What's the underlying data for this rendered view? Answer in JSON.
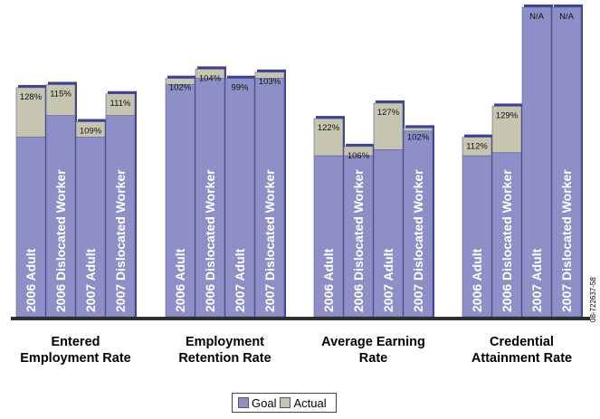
{
  "chart_data": {
    "type": "bar",
    "layout": "stacked-goal-vs-actual",
    "groups": [
      {
        "category": [
          "Entered",
          "Employment Rate"
        ],
        "bars": [
          {
            "label": "2006 Adult",
            "goal_pct": 58,
            "actual_pct": 74,
            "value_label": "128%"
          },
          {
            "label": "2006 Dislocated Worker",
            "goal_pct": 65,
            "actual_pct": 75,
            "value_label": "115%"
          },
          {
            "label": "2007 Adult",
            "goal_pct": 58,
            "actual_pct": 63,
            "value_label": "109%"
          },
          {
            "label": "2007 Dislocated Worker",
            "goal_pct": 65,
            "actual_pct": 72,
            "value_label": "111%"
          }
        ]
      },
      {
        "category": [
          "Employment",
          "Retention Rate"
        ],
        "bars": [
          {
            "label": "2006 Adult",
            "goal_pct": 75,
            "actual_pct": 77,
            "value_label": "102%"
          },
          {
            "label": "2006 Dislocated Worker",
            "goal_pct": 77,
            "actual_pct": 80,
            "value_label": "104%"
          },
          {
            "label": "2007 Adult",
            "goal_pct": 77,
            "actual_pct": 76,
            "value_label": "99%"
          },
          {
            "label": "2007 Dislocated Worker",
            "goal_pct": 77,
            "actual_pct": 79,
            "value_label": "103%"
          }
        ]
      },
      {
        "category": [
          "Average Earning",
          "Rate"
        ],
        "bars": [
          {
            "label": "2006 Adult",
            "goal_pct": 52,
            "actual_pct": 64,
            "value_label": "122%"
          },
          {
            "label": "2006 Dislocated Worker",
            "goal_pct": 52,
            "actual_pct": 55,
            "value_label": "106%"
          },
          {
            "label": "2007 Adult",
            "goal_pct": 54,
            "actual_pct": 69,
            "value_label": "127%"
          },
          {
            "label": "2007 Dislocated Worker",
            "goal_pct": 60,
            "actual_pct": 61,
            "value_label": "102%"
          }
        ]
      },
      {
        "category": [
          "Credential",
          "Attainment Rate"
        ],
        "bars": [
          {
            "label": "2006 Adult",
            "goal_pct": 52,
            "actual_pct": 58,
            "value_label": "112%"
          },
          {
            "label": "2006 Dislocated Worker",
            "goal_pct": 53,
            "actual_pct": 68,
            "value_label": "129%"
          },
          {
            "label": "2007 Adult",
            "goal_pct": 100,
            "actual_pct": null,
            "value_label": "N/A"
          },
          {
            "label": "2007 Dislocated Worker",
            "goal_pct": 100,
            "actual_pct": null,
            "value_label": "N/A"
          }
        ]
      }
    ],
    "legend": [
      "Goal",
      "Actual"
    ],
    "legend_placement": "bottom-center",
    "colors": {
      "goal": "#8d8fc6",
      "actual": "#c6c5b0",
      "border": "#3c4196"
    },
    "side_code": "08-722637-58",
    "xlabel": "",
    "ylabel": "",
    "ylim": [
      0,
      100
    ]
  }
}
